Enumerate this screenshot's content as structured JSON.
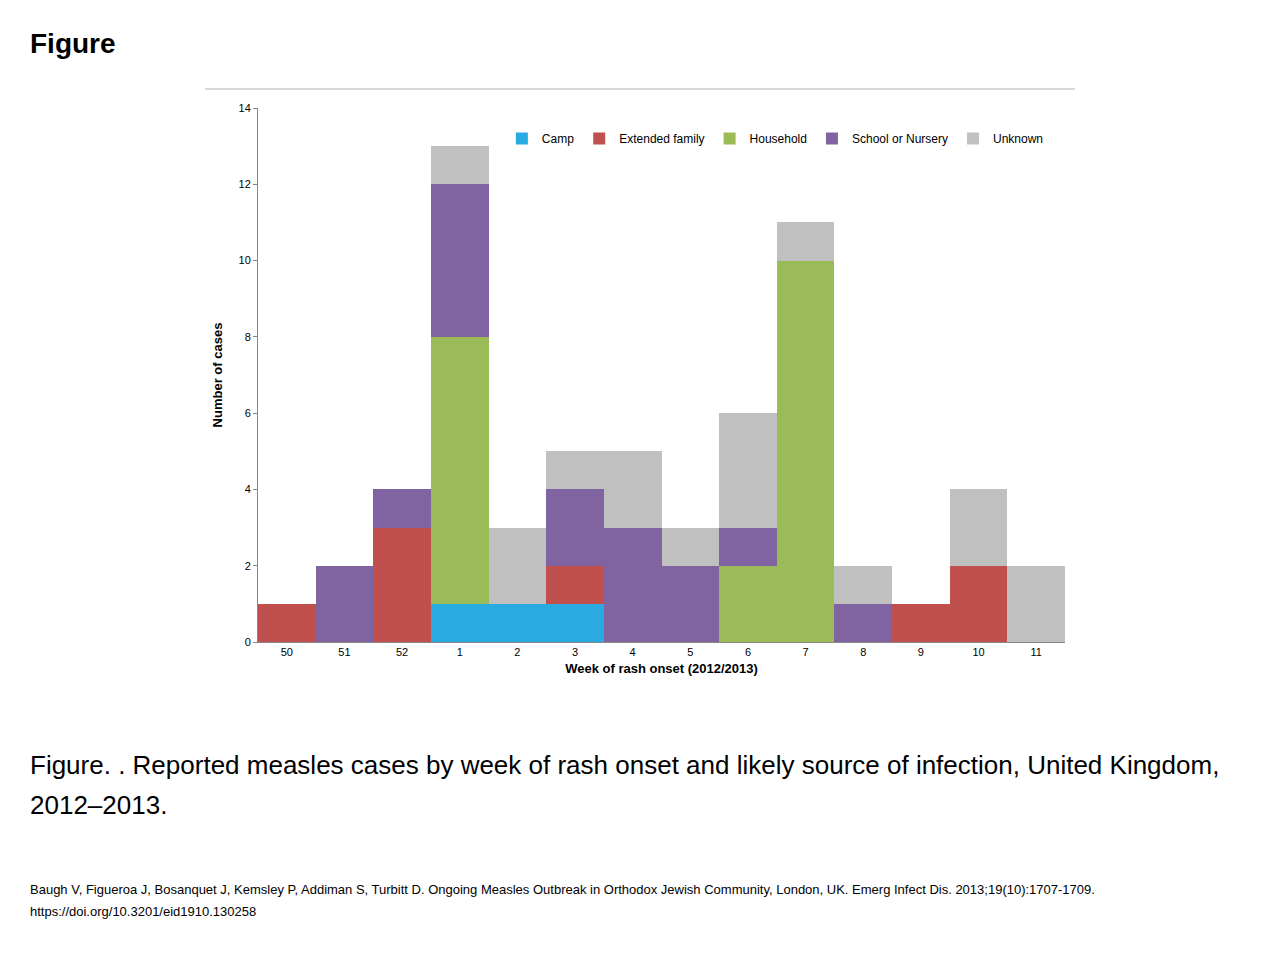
{
  "heading": "Figure",
  "caption": "Figure. . Reported measles cases by week of rash onset and likely source of infection, United Kingdom, 2012–2013.",
  "citation": "Baugh V, Figueroa J, Bosanquet J, Kemsley P, Addiman S, Turbitt D. Ongoing Measles Outbreak in Orthodox Jewish Community, London, UK. Emerg Infect Dis. 2013;19(10):1707-1709. https://doi.org/10.3201/eid1910.130258",
  "chart_data": {
    "type": "bar",
    "stacked": true,
    "x_label": "Week of rash onset (2012/2013)",
    "y_label": "Number of cases",
    "categories": [
      "50",
      "51",
      "52",
      "1",
      "2",
      "3",
      "4",
      "5",
      "6",
      "7",
      "8",
      "9",
      "10",
      "11"
    ],
    "series": [
      {
        "name": "Camp",
        "color": "#29abe2",
        "values": [
          0,
          0,
          0,
          1,
          1,
          1,
          0,
          0,
          0,
          0,
          0,
          0,
          0,
          0
        ]
      },
      {
        "name": "Extended family",
        "color": "#c0504d",
        "values": [
          1,
          0,
          3,
          0,
          0,
          1,
          0,
          0,
          0,
          0,
          0,
          1,
          2,
          0
        ]
      },
      {
        "name": "Household",
        "color": "#9bbb59",
        "values": [
          0,
          0,
          0,
          7,
          0,
          0,
          0,
          0,
          2,
          10,
          0,
          0,
          0,
          0
        ]
      },
      {
        "name": "School or Nursery",
        "color": "#8064a2",
        "values": [
          0,
          2,
          1,
          4,
          0,
          2,
          3,
          2,
          1,
          0,
          1,
          0,
          0,
          0
        ]
      },
      {
        "name": "Unknown",
        "color": "#c0c0c0",
        "values": [
          0,
          0,
          0,
          1,
          2,
          1,
          2,
          1,
          3,
          1,
          1,
          0,
          2,
          2
        ]
      }
    ],
    "ylim": [
      0,
      14
    ],
    "yticks": [
      0,
      2,
      4,
      6,
      8,
      10,
      12,
      14
    ],
    "grid": false,
    "legend": "top right"
  }
}
